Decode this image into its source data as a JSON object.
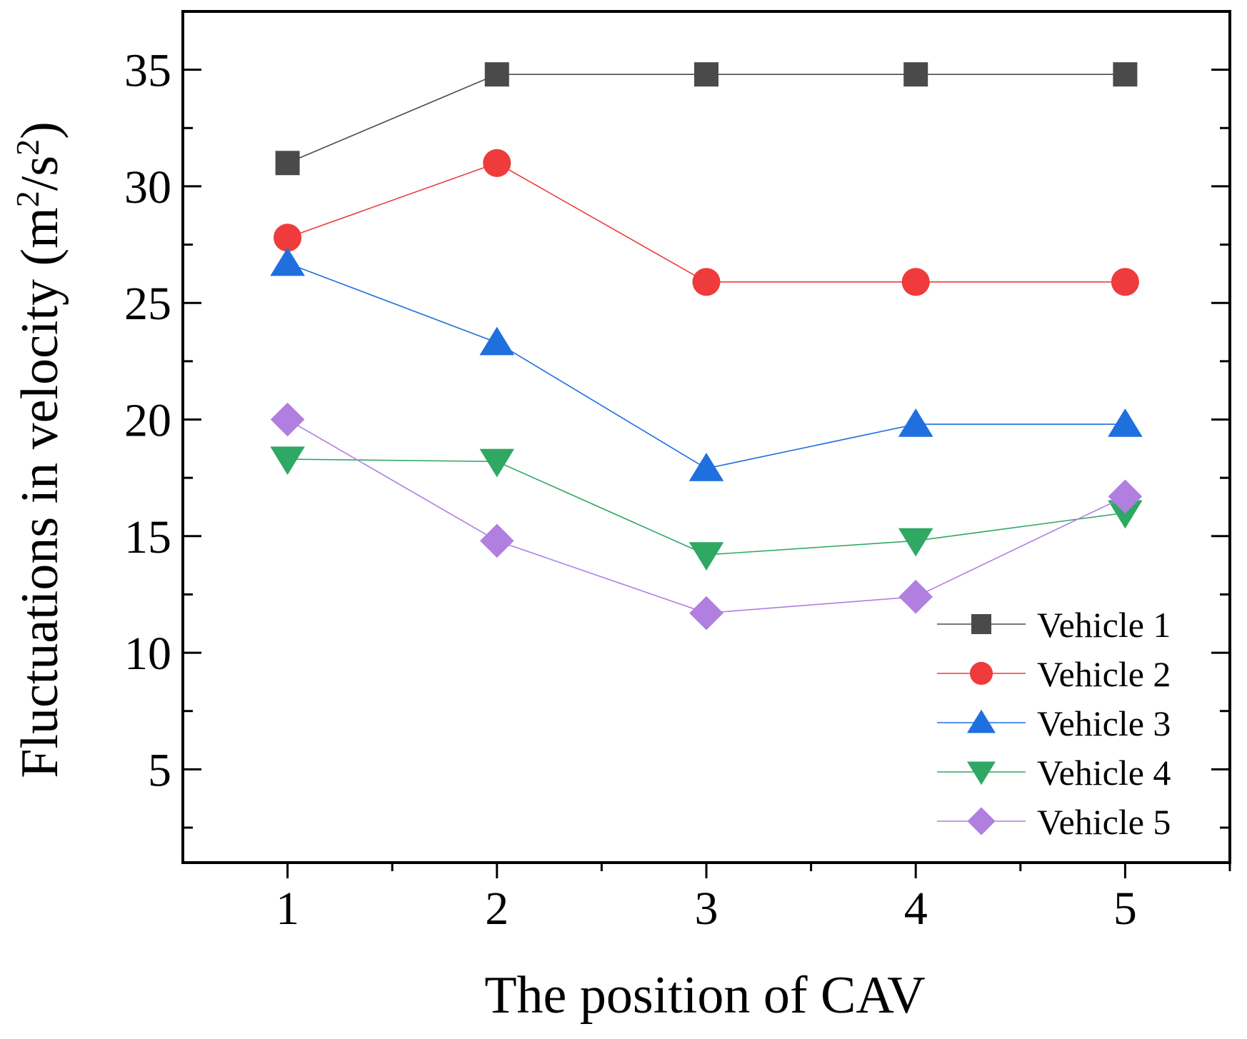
{
  "chart_data": {
    "type": "line",
    "title": "",
    "xlabel": "The position of CAV",
    "ylabel": "Fluctuations in velocity (m²/s²)",
    "ylabel_parts": {
      "main": "Fluctuations in velocity (m",
      "sup1": "2",
      "mid": "/s",
      "sup2": "2",
      "end": ")"
    },
    "x": [
      1,
      2,
      3,
      4,
      5
    ],
    "xlim": [
      0.5,
      5.5
    ],
    "ylim": [
      1,
      37.5
    ],
    "yticks": [
      5,
      10,
      15,
      20,
      25,
      30,
      35
    ],
    "xticks": [
      1,
      2,
      3,
      4,
      5
    ],
    "grid": false,
    "legend_position": "lower-right",
    "series": [
      {
        "name": "Vehicle 1",
        "marker": "square",
        "color": "#4a4a4a",
        "values": [
          31.0,
          34.8,
          34.8,
          34.8,
          34.8
        ]
      },
      {
        "name": "Vehicle 2",
        "marker": "circle",
        "color": "#ef3b3b",
        "values": [
          27.8,
          31.0,
          25.9,
          25.9,
          25.9
        ]
      },
      {
        "name": "Vehicle 3",
        "marker": "triangle-up",
        "color": "#1f6fde",
        "values": [
          26.7,
          23.3,
          17.9,
          19.8,
          19.8
        ]
      },
      {
        "name": "Vehicle 4",
        "marker": "triangle-down",
        "color": "#2fa864",
        "values": [
          18.3,
          18.2,
          14.2,
          14.8,
          16.0
        ]
      },
      {
        "name": "Vehicle 5",
        "marker": "diamond",
        "color": "#b07fe0",
        "values": [
          20.0,
          14.8,
          11.7,
          12.4,
          16.7
        ]
      }
    ]
  }
}
